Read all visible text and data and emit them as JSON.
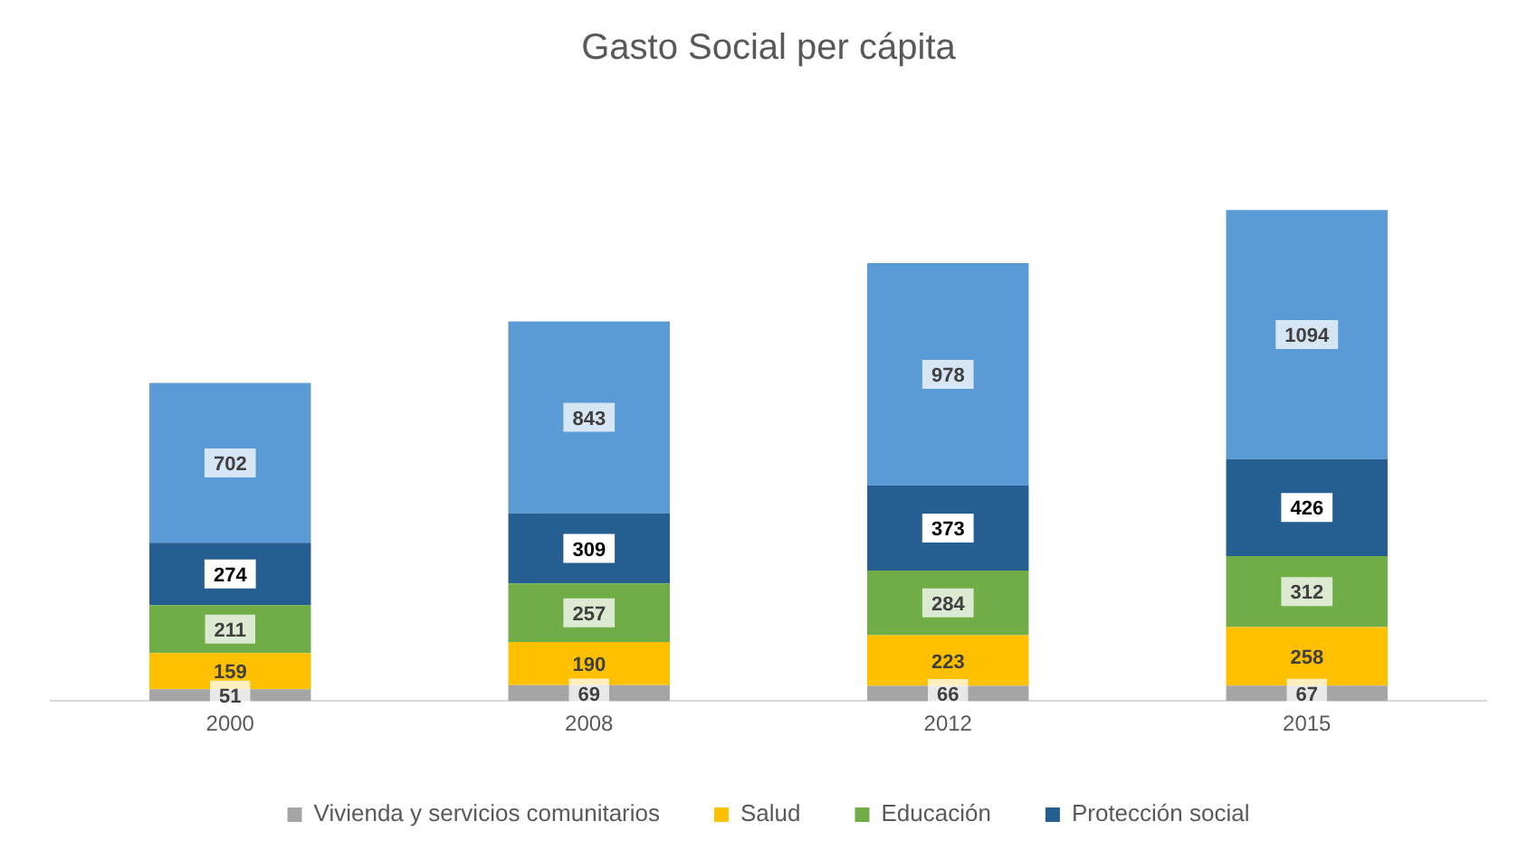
{
  "chart_data": {
    "type": "bar",
    "title": "Gasto Social per cápita",
    "categories": [
      "2000",
      "2008",
      "2012",
      "2015"
    ],
    "stacked": true,
    "data_labels": true,
    "legend": "bottom",
    "grid": false,
    "series": [
      {
        "name": "Vivienda y servicios comunitarios",
        "color": "#a5a5a5",
        "values": [
          51,
          69,
          66,
          67
        ]
      },
      {
        "name": "Salud",
        "color": "#ffc000",
        "values": [
          159,
          190,
          223,
          258
        ]
      },
      {
        "name": "Educación",
        "color": "#70ad47",
        "values": [
          211,
          257,
          284,
          312
        ]
      },
      {
        "name": "Protección social",
        "color": "#255e91",
        "values": [
          274,
          309,
          373,
          426
        ]
      },
      {
        "color": "#5b9bd5",
        "values": [
          702,
          843,
          978,
          1094
        ]
      }
    ]
  }
}
